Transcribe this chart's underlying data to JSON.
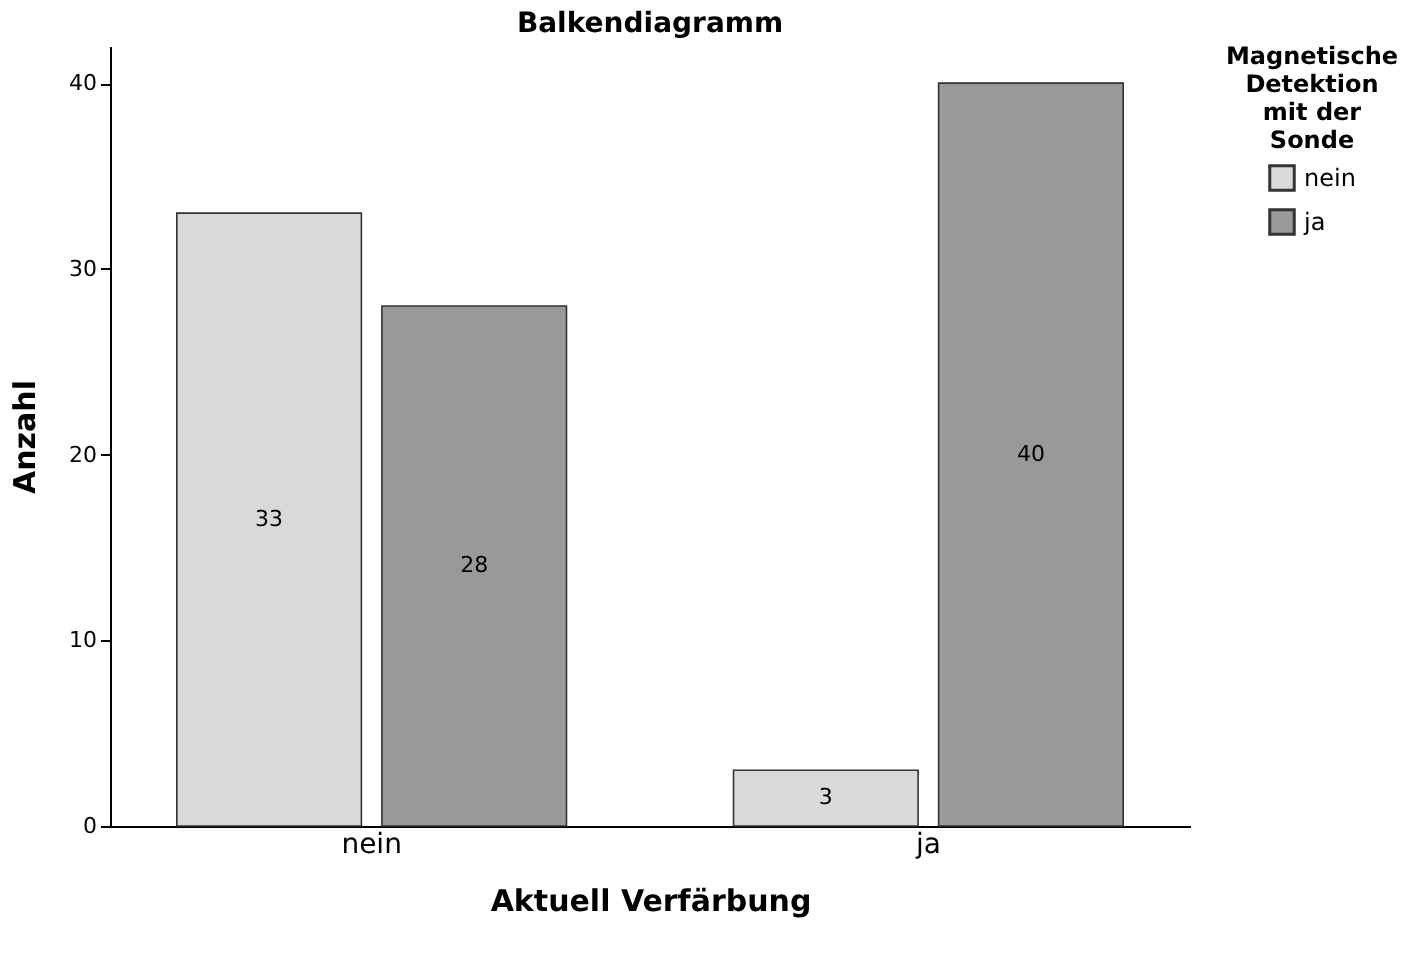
{
  "chart_data": {
    "type": "bar",
    "title": "Balkendiagramm",
    "xlabel": "Aktuell Verfärbung",
    "ylabel": "Anzahl",
    "legend_title": "Magnetische Detektion mit der Sonde",
    "categories": [
      "nein",
      "ja"
    ],
    "series": [
      {
        "name": "nein",
        "color": "#d9d9d9",
        "values": [
          33,
          3
        ]
      },
      {
        "name": "ja",
        "color": "#999999",
        "values": [
          28,
          40
        ]
      }
    ],
    "ylim": [
      0,
      42
    ],
    "yticks": [
      0,
      10,
      20,
      30,
      40
    ],
    "data_labels": true,
    "legend": "top right",
    "grid": false
  }
}
